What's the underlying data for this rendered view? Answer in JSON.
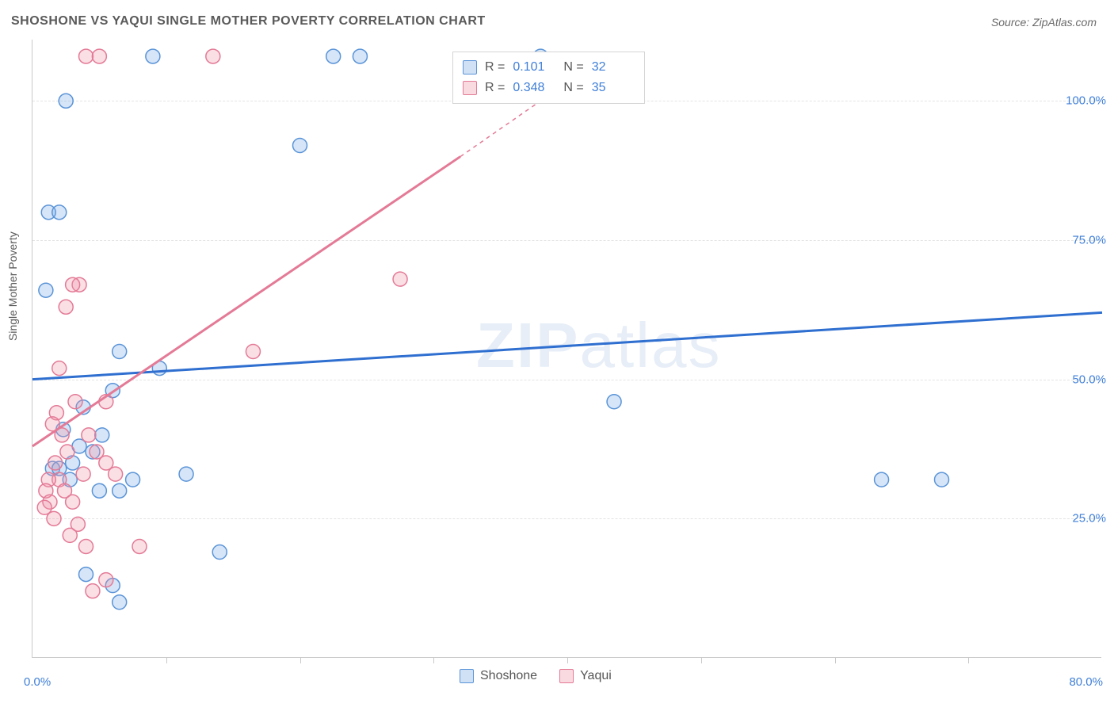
{
  "title": "SHOSHONE VS YAQUI SINGLE MOTHER POVERTY CORRELATION CHART",
  "source": "Source: ZipAtlas.com",
  "ylabel": "Single Mother Poverty",
  "watermark": "ZIPatlas",
  "chart": {
    "type": "scatter",
    "xlim": [
      0,
      80
    ],
    "ylim": [
      0,
      111
    ],
    "xtick_min_label": "0.0%",
    "xtick_max_label": "80.0%",
    "yticks": [
      25,
      50,
      75,
      100
    ],
    "ytick_labels": [
      "25.0%",
      "50.0%",
      "75.0%",
      "100.0%"
    ],
    "xticks_minor": [
      10,
      20,
      30,
      40,
      50,
      60,
      70
    ],
    "background_color": "#ffffff",
    "grid_color": "#e3e3e3",
    "axis_color": "#c9c9c9",
    "marker_radius": 9,
    "marker_stroke_width": 1.5,
    "marker_fill_opacity": 0.28,
    "regression_line_width": 3,
    "regression_dash_width": 1.5
  },
  "series": [
    {
      "name": "Shoshone",
      "color": "#5a94d8",
      "fill": "rgba(120,170,230,0.30)",
      "R": "0.101",
      "N": "32",
      "regression": {
        "x1": 0,
        "y1": 50,
        "x2": 80,
        "y2": 62
      },
      "points": [
        [
          1.0,
          66
        ],
        [
          1.2,
          80
        ],
        [
          2.0,
          80
        ],
        [
          2.5,
          100
        ],
        [
          9.0,
          108
        ],
        [
          22.5,
          108
        ],
        [
          24.5,
          108
        ],
        [
          38.0,
          108
        ],
        [
          20.0,
          92
        ],
        [
          6.5,
          55
        ],
        [
          9.5,
          52
        ],
        [
          6.0,
          48
        ],
        [
          3.5,
          38
        ],
        [
          4.5,
          37
        ],
        [
          1.5,
          34
        ],
        [
          7.5,
          32
        ],
        [
          2.0,
          34
        ],
        [
          5.0,
          30
        ],
        [
          6.5,
          30
        ],
        [
          11.5,
          33
        ],
        [
          4.0,
          15
        ],
        [
          6.0,
          13
        ],
        [
          6.5,
          10
        ],
        [
          14.0,
          19
        ],
        [
          43.5,
          46
        ],
        [
          63.5,
          32
        ],
        [
          68.0,
          32
        ],
        [
          2.3,
          41
        ],
        [
          3.0,
          35
        ],
        [
          5.2,
          40
        ],
        [
          2.8,
          32
        ],
        [
          3.8,
          45
        ]
      ]
    },
    {
      "name": "Yaqui",
      "color": "#e47a96",
      "fill": "rgba(240,150,170,0.30)",
      "R": "0.348",
      "N": "35",
      "regression_solid": {
        "x1": 0,
        "y1": 38,
        "x2": 32,
        "y2": 90
      },
      "regression_dash": {
        "x1": 32,
        "y1": 90,
        "x2": 38,
        "y2": 100
      },
      "points": [
        [
          4.0,
          108
        ],
        [
          5.0,
          108
        ],
        [
          13.5,
          108
        ],
        [
          3.5,
          67
        ],
        [
          3.0,
          67
        ],
        [
          2.5,
          63
        ],
        [
          27.5,
          68
        ],
        [
          16.5,
          55
        ],
        [
          2.0,
          52
        ],
        [
          5.5,
          46
        ],
        [
          3.2,
          46
        ],
        [
          1.8,
          44
        ],
        [
          1.5,
          42
        ],
        [
          4.2,
          40
        ],
        [
          2.2,
          40
        ],
        [
          2.6,
          37
        ],
        [
          4.8,
          37
        ],
        [
          1.7,
          35
        ],
        [
          5.5,
          35
        ],
        [
          3.8,
          33
        ],
        [
          2.0,
          32
        ],
        [
          1.2,
          32
        ],
        [
          1.0,
          30
        ],
        [
          2.4,
          30
        ],
        [
          3.0,
          28
        ],
        [
          1.3,
          28
        ],
        [
          0.9,
          27
        ],
        [
          1.6,
          25
        ],
        [
          4.0,
          20
        ],
        [
          8.0,
          20
        ],
        [
          5.5,
          14
        ],
        [
          4.5,
          12
        ],
        [
          2.8,
          22
        ],
        [
          3.4,
          24
        ],
        [
          6.2,
          33
        ]
      ]
    }
  ],
  "legend_bottom": [
    {
      "label": "Shoshone",
      "swatch": "blue"
    },
    {
      "label": "Yaqui",
      "swatch": "pink"
    }
  ],
  "legend_top_labels": {
    "R": "R =",
    "N": "N ="
  }
}
